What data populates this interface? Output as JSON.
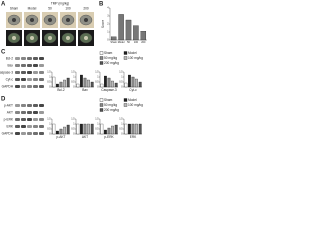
{
  "panels": {
    "A": {
      "label": "A",
      "header": "TMP (mg/kg)",
      "groups": [
        "Sham",
        "Model",
        "50",
        "100",
        "200"
      ]
    },
    "B": {
      "label": "B"
    },
    "C": {
      "label": "C",
      "blot_labels": [
        "Bcl-2",
        "Bax",
        "Caspase-3",
        "Cyt-c",
        "GAPDH"
      ],
      "legend": [
        {
          "name": "Sham",
          "color": "#ffffff"
        },
        {
          "name": "Model",
          "color": "#222222"
        },
        {
          "name": "50 mg/kg",
          "color": "#888888"
        },
        {
          "name": "100 mg/kg",
          "color": "#bbbbbb"
        },
        {
          "name": "200 mg/kg",
          "color": "#555555"
        }
      ]
    },
    "D": {
      "label": "D",
      "blot_labels": [
        "p-AKT",
        "AKT",
        "p-ERK",
        "ERK",
        "GAPDH"
      ],
      "legend": [
        {
          "name": "Sham",
          "color": "#ffffff"
        },
        {
          "name": "Model",
          "color": "#222222"
        },
        {
          "name": "50 mg/kg",
          "color": "#888888"
        },
        {
          "name": "100 mg/kg",
          "color": "#bbbbbb"
        },
        {
          "name": "200 mg/kg",
          "color": "#555555"
        }
      ]
    }
  },
  "chart_data": [
    {
      "type": "bar",
      "ylabel": "Score",
      "categories": [
        "Sham",
        "Model",
        "50",
        "100",
        "200"
      ],
      "values": [
        0.4,
        3.2,
        2.5,
        1.8,
        1.1
      ],
      "color": "#777777",
      "ylim": [
        0,
        4
      ],
      "yticks": [
        0,
        1,
        2,
        3,
        4
      ]
    },
    {
      "type": "bar",
      "xlabel": "Bcl-2",
      "values": [
        1.0,
        0.3,
        0.5,
        0.7,
        0.9
      ],
      "ylim": [
        0,
        1.5
      ],
      "yticks": [
        0,
        0.5,
        1,
        1.5
      ]
    },
    {
      "type": "bar",
      "xlabel": "Bax",
      "values": [
        0.3,
        1.2,
        0.9,
        0.7,
        0.5
      ],
      "ylim": [
        0,
        1.5
      ],
      "yticks": [
        0,
        0.5,
        1,
        1.5
      ]
    },
    {
      "type": "bar",
      "xlabel": "Caspase-3",
      "values": [
        0.3,
        1.1,
        0.9,
        0.6,
        0.4
      ],
      "ylim": [
        0,
        1.5
      ],
      "yticks": [
        0,
        0.5,
        1,
        1.5
      ]
    },
    {
      "type": "bar",
      "xlabel": "Cyt-c",
      "values": [
        0.4,
        1.2,
        1.0,
        0.8,
        0.5
      ],
      "ylim": [
        0,
        1.5
      ],
      "yticks": [
        0,
        0.5,
        1,
        1.5
      ]
    },
    {
      "type": "bar",
      "xlabel": "p-AKT",
      "values": [
        1.0,
        0.3,
        0.5,
        0.7,
        0.9
      ],
      "ylim": [
        0,
        1.5
      ],
      "yticks": [
        0,
        0.5,
        1,
        1.5
      ]
    },
    {
      "type": "bar",
      "xlabel": "AKT",
      "values": [
        1.0,
        1.0,
        1.0,
        1.0,
        1.0
      ],
      "ylim": [
        0,
        1.5
      ],
      "yticks": [
        0,
        0.5,
        1,
        1.5
      ]
    },
    {
      "type": "bar",
      "xlabel": "p-ERK",
      "values": [
        1.0,
        0.4,
        0.6,
        0.8,
        0.9
      ],
      "ylim": [
        0,
        1.5
      ],
      "yticks": [
        0,
        0.5,
        1,
        1.5
      ]
    },
    {
      "type": "bar",
      "xlabel": "ERK",
      "values": [
        1.0,
        1.0,
        1.0,
        1.0,
        1.0
      ],
      "ylim": [
        0,
        1.5
      ],
      "yticks": [
        0,
        0.5,
        1,
        1.5
      ]
    }
  ]
}
